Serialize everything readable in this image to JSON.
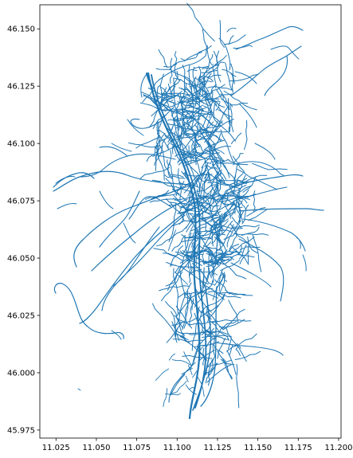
{
  "chart_data": {
    "type": "map",
    "title": "",
    "xlabel": "",
    "ylabel": "",
    "xlim": [
      11.015,
      11.2015
    ],
    "ylim": [
      45.9715,
      46.1605
    ],
    "xticks": [
      "11.025",
      "11.050",
      "11.075",
      "11.100",
      "11.125",
      "11.150",
      "11.175",
      "11.200"
    ],
    "yticks": [
      "46.150",
      "46.125",
      "46.100",
      "46.075",
      "46.050",
      "46.025",
      "46.000",
      "45.975"
    ],
    "line_color": "#1f77b4",
    "grid": false,
    "legend": false
  }
}
